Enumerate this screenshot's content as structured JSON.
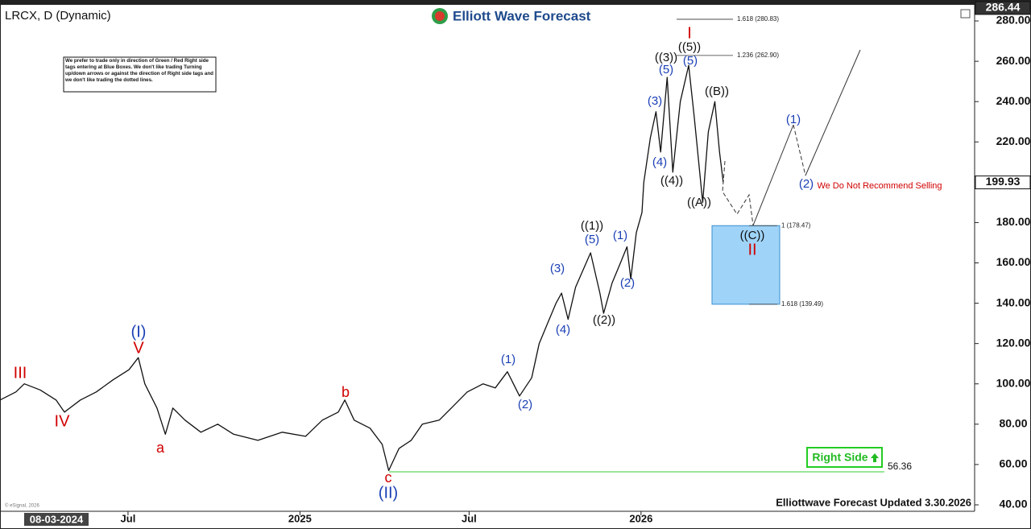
{
  "chart_data": {
    "type": "line",
    "title": "LRCX, D (Dynamic)",
    "brand": "Elliott Wave Forecast",
    "disclaimer": "We prefer to trade only in direction of Green / Red Right side tags entering at Blue Boxes. We don't like trading Turning up/down arrows or against the direction of Right side tags and we don't like trading the dotted lines.",
    "footer": "Elliottwave Forecast Updated 3.30.2026",
    "copyright": "© eSignal, 2026",
    "cursor_date": "08-03-2024",
    "right_side": "Right Side",
    "series": [
      {
        "name": "LRCX",
        "color": "#111111",
        "x": [
          "2024-02-15",
          "2024-03-03",
          "2024-03-12",
          "2024-03-29",
          "2024-04-15",
          "2024-04-24",
          "2024-05-11",
          "2024-05-28",
          "2024-06-15",
          "2024-07-02",
          "2024-07-12",
          "2024-07-19",
          "2024-08-01",
          "2024-08-10",
          "2024-08-18",
          "2024-08-31",
          "2024-09-17",
          "2024-10-05",
          "2024-10-22",
          "2024-11-17",
          "2024-12-13",
          "2025-01-07",
          "2025-01-25",
          "2025-02-11",
          "2025-02-18",
          "2025-02-28",
          "2025-03-17",
          "2025-03-30",
          "2025-04-06",
          "2025-04-17",
          "2025-04-30",
          "2025-05-12",
          "2025-05-30",
          "2025-06-12",
          "2025-06-29",
          "2025-07-16",
          "2025-07-29",
          "2025-08-11",
          "2025-08-24",
          "2025-09-06",
          "2025-09-14",
          "2025-09-23",
          "2025-10-02",
          "2025-10-08",
          "2025-10-15",
          "2025-10-23",
          "2025-11-08",
          "2025-11-18",
          "2025-11-22",
          "2025-12-01",
          "2025-12-10",
          "2025-12-17",
          "2025-12-21",
          "2025-12-27",
          "2026-01-02",
          "2026-01-04",
          "2026-01-11",
          "2026-01-17",
          "2026-01-22",
          "2026-01-29",
          "2026-02-04",
          "2026-02-12",
          "2026-02-21",
          "2026-02-27",
          "2026-03-08",
          "2026-03-14",
          "2026-03-21",
          "2026-03-26",
          "2026-03-30"
        ],
        "values": [
          92,
          96,
          100,
          97,
          92,
          86,
          92,
          96,
          102,
          107,
          113,
          100,
          88,
          75,
          88,
          82,
          76,
          80,
          75,
          72,
          76,
          74,
          82,
          86,
          92,
          82,
          78,
          70,
          57,
          68,
          72,
          80,
          82,
          88,
          96,
          100,
          98,
          106,
          94,
          103,
          120,
          130,
          140,
          145,
          132,
          148,
          165,
          145,
          135,
          150,
          160,
          168,
          152,
          175,
          185,
          200,
          222,
          235,
          215,
          252,
          205,
          240,
          258,
          232,
          190,
          225,
          240,
          215,
          200
        ]
      }
    ],
    "xlim": [
      "2024-02-15",
      "2026-12-24"
    ],
    "xticks": [
      {
        "value": "2024-07-01",
        "label": "Jul"
      },
      {
        "value": "2025-01-01",
        "label": "2025"
      },
      {
        "value": "2025-07-01",
        "label": "Jul"
      },
      {
        "value": "2026-01-01",
        "label": "2026"
      }
    ],
    "ylim": [
      36.8,
      287.2
    ],
    "yticks": [
      {
        "value": 40,
        "label": "40.00"
      },
      {
        "value": 60,
        "label": "60.00"
      },
      {
        "value": 80,
        "label": "80.00"
      },
      {
        "value": 100,
        "label": "100.00"
      },
      {
        "value": 120,
        "label": "120.00"
      },
      {
        "value": 140,
        "label": "140.00"
      },
      {
        "value": 160,
        "label": "160.00"
      },
      {
        "value": 180,
        "label": "180.00"
      },
      {
        "value": 200,
        "label": "200.00"
      },
      {
        "value": 220,
        "label": "220.00"
      },
      {
        "value": 240,
        "label": "240.00"
      },
      {
        "value": 260,
        "label": "260.00"
      },
      {
        "value": 280,
        "label": "280.00"
      }
    ],
    "grid": false,
    "price_tags": [
      286.44,
      199.93
    ],
    "support_level": 56.36,
    "support_color": "#33cc33",
    "box_color": "#9fd3f7",
    "fib_levels": [
      {
        "value": 280.83,
        "label": "1.618 (280.83)"
      },
      {
        "value": 262.9,
        "label": "1.236 (262.90)"
      },
      {
        "value": 178.47,
        "label": "1 (178.47)"
      },
      {
        "value": 139.49,
        "label": "1.618 (139.49)"
      }
    ],
    "wave_labels": [
      {
        "text": "III",
        "color": "#d00000"
      },
      {
        "text": "IV",
        "color": "#d00000"
      },
      {
        "text": "(I)",
        "color": "#1a3fb5"
      },
      {
        "text": "V",
        "color": "#d00000"
      },
      {
        "text": "a",
        "color": "#d00000"
      },
      {
        "text": "b",
        "color": "#d00000"
      },
      {
        "text": "c",
        "color": "#d00000"
      },
      {
        "text": "(II)",
        "color": "#1a3fb5"
      },
      {
        "text": "(1)",
        "color": "#1a3fb5"
      },
      {
        "text": "(2)",
        "color": "#1a3fb5"
      },
      {
        "text": "(3)",
        "color": "#1a3fb5"
      },
      {
        "text": "(4)",
        "color": "#1a3fb5"
      },
      {
        "text": "((1))",
        "color": "#111111"
      },
      {
        "text": "(5)",
        "color": "#1a3fb5"
      },
      {
        "text": "((2))",
        "color": "#111111"
      },
      {
        "text": "(1)",
        "color": "#1a3fb5"
      },
      {
        "text": "(2)",
        "color": "#1a3fb5"
      },
      {
        "text": "(3)",
        "color": "#1a3fb5"
      },
      {
        "text": "(4)",
        "color": "#1a3fb5"
      },
      {
        "text": "((4))",
        "color": "#111111"
      },
      {
        "text": "(5)",
        "color": "#1a3fb5"
      },
      {
        "text": "((3))",
        "color": "#111111"
      },
      {
        "text": "((5))",
        "color": "#111111"
      },
      {
        "text": "(5)",
        "color": "#1a3fb5"
      },
      {
        "text": "I",
        "color": "#d00000"
      },
      {
        "text": "((B))",
        "color": "#111111"
      },
      {
        "text": "((A))",
        "color": "#111111"
      },
      {
        "text": "((C))",
        "color": "#111111"
      },
      {
        "text": "II",
        "color": "#d00000"
      },
      {
        "text": "(1)",
        "color": "#1a3fb5"
      },
      {
        "text": "(2)",
        "color": "#1a3fb5"
      },
      {
        "text": "We Do Not Recommend Selling",
        "color": "#d00000"
      }
    ]
  }
}
